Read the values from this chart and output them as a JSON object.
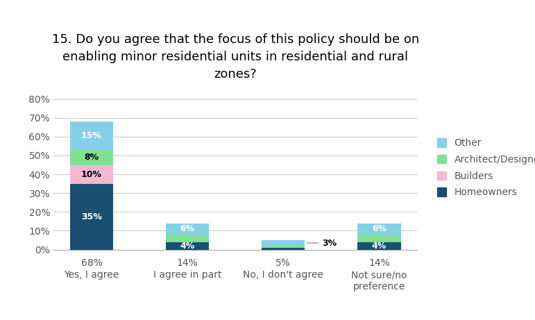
{
  "title": "15. Do you agree that the focus of this policy should be on\nenabling minor residential units in residential and rural\nzones?",
  "categories": [
    "Yes, I agree",
    "I agree in part",
    "No, I don't agree",
    "Not sure/no\npreference"
  ],
  "x_labels_pct": [
    "68%",
    "14%",
    "5%",
    "14%"
  ],
  "segments": {
    "Homeowners": [
      35,
      4,
      1,
      4
    ],
    "Builders": [
      10,
      0,
      0,
      0
    ],
    "Architect/Designer": [
      8,
      4,
      1,
      4
    ],
    "Other": [
      15,
      6,
      3,
      6
    ]
  },
  "colors": {
    "Homeowners": "#1a4f72",
    "Builders": "#f4b8d1",
    "Architect/Designer": "#82e096",
    "Other": "#85d0e8"
  },
  "bar_labels": {
    "Homeowners": [
      "35%",
      "4%",
      "",
      "4%"
    ],
    "Builders": [
      "10%",
      "",
      "",
      ""
    ],
    "Architect/Designer": [
      "8%",
      "",
      "",
      ""
    ],
    "Other": [
      "15%",
      "6%",
      "",
      "6%"
    ]
  },
  "no_agree_annotation": "3%",
  "ylim": [
    0,
    85
  ],
  "yticks": [
    0,
    10,
    20,
    30,
    40,
    50,
    60,
    70,
    80
  ],
  "background_color": "#ffffff",
  "grid_color": "#cccccc",
  "title_fontsize": 13,
  "tick_fontsize": 10,
  "legend_fontsize": 10,
  "bar_label_fontsize": 9
}
